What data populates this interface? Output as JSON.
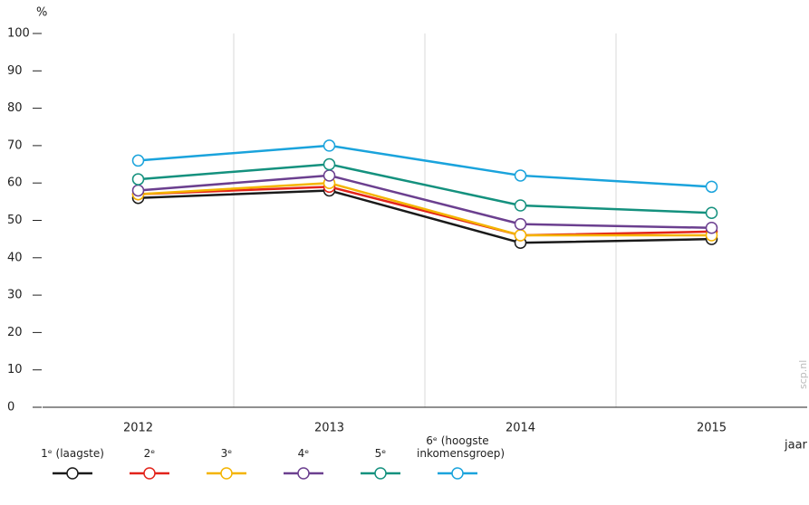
{
  "chart_data": {
    "type": "line",
    "y_label": "%",
    "x_label": "jaar",
    "watermark": "scp.nl",
    "categories": [
      "2012",
      "2013",
      "2014",
      "2015"
    ],
    "ylim": [
      0,
      100
    ],
    "yticks": [
      0,
      10,
      20,
      30,
      40,
      50,
      60,
      70,
      80,
      90,
      100
    ],
    "series": [
      {
        "name": "1ᵉ (laagste)",
        "color": "#1a1a1a",
        "values": [
          56,
          58,
          44,
          45
        ]
      },
      {
        "name": "2ᵉ",
        "color": "#e2231a",
        "values": [
          57,
          59,
          46,
          47
        ]
      },
      {
        "name": "3ᵉ",
        "color": "#f4b400",
        "values": [
          57,
          60,
          46,
          46
        ]
      },
      {
        "name": "4ᵉ",
        "color": "#6b3f8f",
        "values": [
          58,
          62,
          49,
          48
        ]
      },
      {
        "name": "5ᵉ",
        "color": "#14917e",
        "values": [
          61,
          65,
          54,
          52
        ]
      },
      {
        "name": "6ᵉ (hoogste inkomensgroep)",
        "color": "#1aa3dc",
        "values": [
          66,
          70,
          62,
          59
        ]
      }
    ]
  }
}
